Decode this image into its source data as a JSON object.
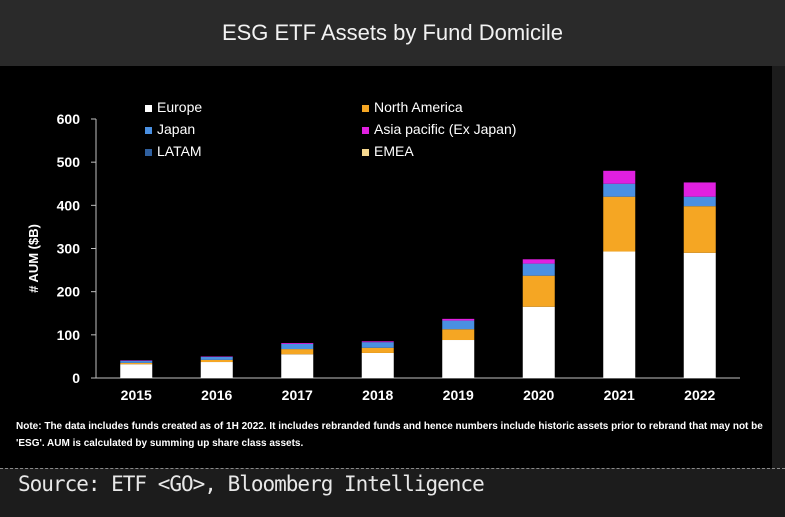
{
  "header": {
    "title": "ESG ETF Assets by Fund Domicile"
  },
  "chart_data": {
    "type": "bar",
    "stacked": true,
    "title": "ESG ETF Assets by Fund Domicile",
    "xlabel": "",
    "ylabel": "# AUM ($B)",
    "ylim": [
      0,
      600
    ],
    "yticks": [
      "0",
      "100",
      "200",
      "300",
      "400",
      "500",
      "600"
    ],
    "categories": [
      "2015",
      "2016",
      "2017",
      "2018",
      "2019",
      "2020",
      "2021",
      "2022"
    ],
    "series": [
      {
        "name": "Europe",
        "color": "#ffffff",
        "values": [
          32,
          37,
          55,
          58,
          88,
          165,
          293,
          290
        ]
      },
      {
        "name": "North America",
        "color": "#f5a623",
        "values": [
          3,
          5,
          12,
          12,
          25,
          72,
          127,
          108
        ]
      },
      {
        "name": "Japan",
        "color": "#4a90e2",
        "values": [
          5,
          7,
          12,
          13,
          20,
          28,
          30,
          22
        ]
      },
      {
        "name": "Asia pacific (Ex Japan)",
        "color": "#e020e0",
        "values": [
          1,
          1,
          2,
          2,
          4,
          10,
          30,
          33
        ]
      },
      {
        "name": "LATAM",
        "color": "#2f5f9e",
        "values": [
          0,
          0,
          0,
          0,
          0,
          0,
          0,
          0
        ]
      },
      {
        "name": "EMEA",
        "color": "#f5d78e",
        "values": [
          0,
          0,
          0,
          0,
          0,
          0,
          0,
          0
        ]
      }
    ],
    "legend_position": "top-left"
  },
  "note": "Note: The data  includes funds created as of 1H 2022. It includes rebranded funds and hence numbers include historic assets prior to rebrand that may not be 'ESG'. AUM is calculated by summing up share class assets.",
  "source": "Source: ETF <GO>, Bloomberg Intelligence"
}
